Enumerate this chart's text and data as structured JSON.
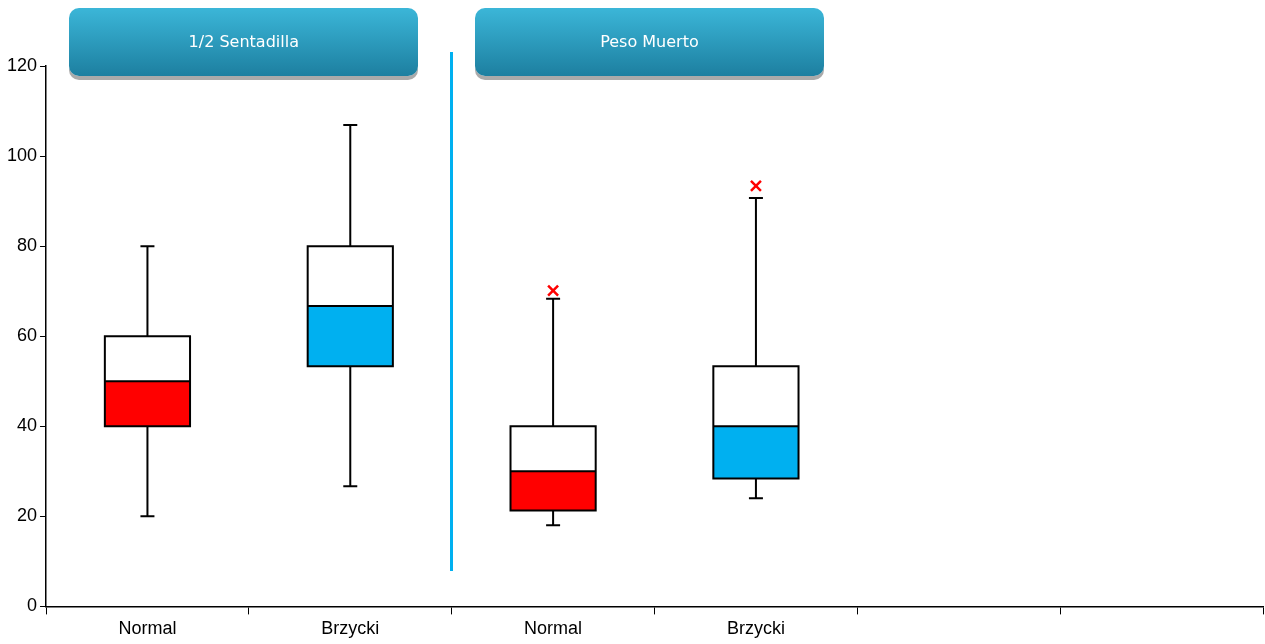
{
  "chart_data": {
    "type": "box",
    "categories": [
      "Normal",
      "Brzycki",
      "Normal",
      "Brzycki",
      null,
      null
    ],
    "boxes": [
      {
        "low": 20,
        "q1": 40,
        "median": 50,
        "q3": 60,
        "high": 80
      },
      {
        "low": 26.7,
        "q1": 53.3,
        "median": 66.7,
        "q3": 80,
        "high": 106.9
      },
      {
        "low": 18,
        "q1": 21.3,
        "median": 30,
        "q3": 40,
        "high": 68.3,
        "outliers": [
          70.1
        ]
      },
      {
        "low": 24,
        "q1": 28.4,
        "median": 40,
        "q3": 53.3,
        "high": 90.7,
        "outliers": [
          93.4
        ]
      },
      null,
      null
    ],
    "colors": [
      "#ff0000",
      "#00b0f0",
      "#ff0000",
      "#00b0f0",
      null,
      null
    ],
    "ylim": [
      0,
      120
    ],
    "yticks": [
      0,
      20,
      40,
      60,
      80,
      100,
      120
    ],
    "grid": false,
    "legend": false,
    "marker": "cross",
    "annotations": [
      "1/2 Sentadilla",
      "Peso Muerto"
    ]
  }
}
